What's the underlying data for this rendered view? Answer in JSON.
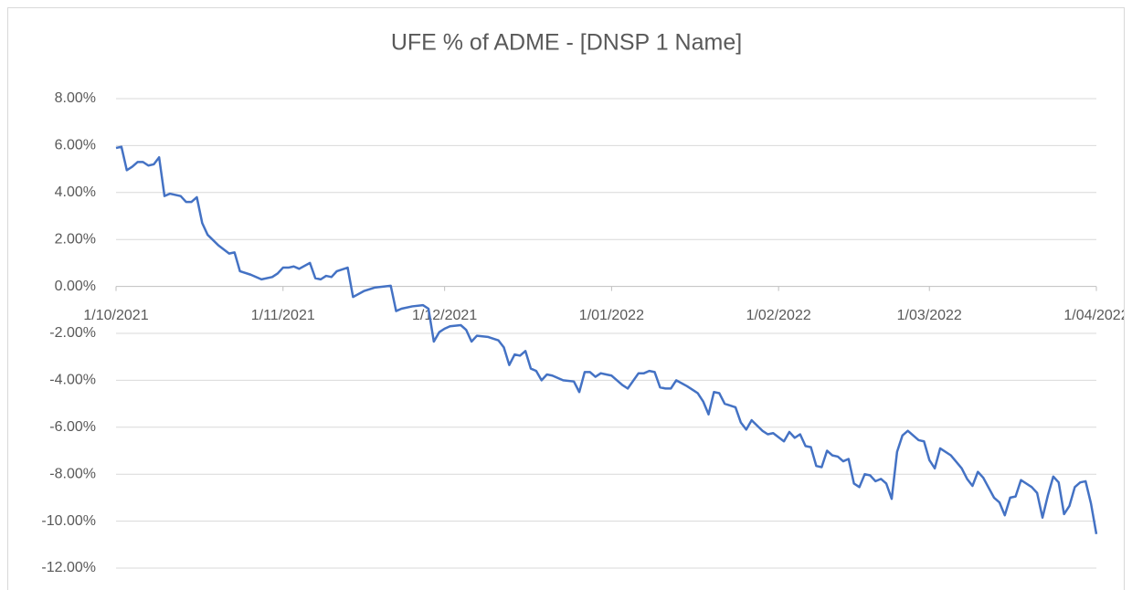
{
  "chart_data": {
    "type": "line",
    "title": "UFE % of ADME - [DNSP 1 Name]",
    "x": [
      "2021-10-01",
      "2021-10-02",
      "2021-10-03",
      "2021-10-04",
      "2021-10-05",
      "2021-10-06",
      "2021-10-07",
      "2021-10-08",
      "2021-10-09",
      "2021-10-10",
      "2021-10-11",
      "2021-10-13",
      "2021-10-14",
      "2021-10-15",
      "2021-10-16",
      "2021-10-17",
      "2021-10-18",
      "2021-10-20",
      "2021-10-22",
      "2021-10-23",
      "2021-10-24",
      "2021-10-26",
      "2021-10-28",
      "2021-10-30",
      "2021-10-31",
      "2021-11-01",
      "2021-11-02",
      "2021-11-03",
      "2021-11-04",
      "2021-11-06",
      "2021-11-07",
      "2021-11-08",
      "2021-11-09",
      "2021-11-10",
      "2021-11-11",
      "2021-11-13",
      "2021-11-14",
      "2021-11-16",
      "2021-11-18",
      "2021-11-21",
      "2021-11-22",
      "2021-11-23",
      "2021-11-25",
      "2021-11-27",
      "2021-11-28",
      "2021-11-29",
      "2021-11-30",
      "2021-12-01",
      "2021-12-02",
      "2021-12-04",
      "2021-12-05",
      "2021-12-06",
      "2021-12-07",
      "2021-12-09",
      "2021-12-11",
      "2021-12-12",
      "2021-12-13",
      "2021-12-14",
      "2021-12-15",
      "2021-12-16",
      "2021-12-17",
      "2021-12-18",
      "2021-12-19",
      "2021-12-20",
      "2021-12-21",
      "2021-12-23",
      "2021-12-25",
      "2021-12-26",
      "2021-12-27",
      "2021-12-28",
      "2021-12-29",
      "2021-12-30",
      "2021-12-31",
      "2022-01-01",
      "2022-01-03",
      "2022-01-04",
      "2022-01-06",
      "2022-01-07",
      "2022-01-08",
      "2022-01-09",
      "2022-01-10",
      "2022-01-11",
      "2022-01-12",
      "2022-01-13",
      "2022-01-15",
      "2022-01-17",
      "2022-01-18",
      "2022-01-19",
      "2022-01-20",
      "2022-01-21",
      "2022-01-22",
      "2022-01-24",
      "2022-01-25",
      "2022-01-26",
      "2022-01-27",
      "2022-01-29",
      "2022-01-30",
      "2022-01-31",
      "2022-02-02",
      "2022-02-03",
      "2022-02-04",
      "2022-02-05",
      "2022-02-06",
      "2022-02-07",
      "2022-02-08",
      "2022-02-09",
      "2022-02-10",
      "2022-02-11",
      "2022-02-12",
      "2022-02-13",
      "2022-02-14",
      "2022-02-15",
      "2022-02-16",
      "2022-02-17",
      "2022-02-18",
      "2022-02-19",
      "2022-02-20",
      "2022-02-21",
      "2022-02-22",
      "2022-02-23",
      "2022-02-24",
      "2022-02-25",
      "2022-02-27",
      "2022-02-28",
      "2022-03-01",
      "2022-03-02",
      "2022-03-03",
      "2022-03-05",
      "2022-03-07",
      "2022-03-08",
      "2022-03-09",
      "2022-03-10",
      "2022-03-11",
      "2022-03-13",
      "2022-03-14",
      "2022-03-15",
      "2022-03-16",
      "2022-03-17",
      "2022-03-18",
      "2022-03-20",
      "2022-03-21",
      "2022-03-22",
      "2022-03-23",
      "2022-03-24",
      "2022-03-25",
      "2022-03-26",
      "2022-03-27",
      "2022-03-28",
      "2022-03-29",
      "2022-03-30",
      "2022-03-31",
      "2022-04-01"
    ],
    "values": [
      5.9,
      5.95,
      4.95,
      5.1,
      5.3,
      5.3,
      5.15,
      5.2,
      5.5,
      3.85,
      3.95,
      3.85,
      3.6,
      3.6,
      3.8,
      2.7,
      2.2,
      1.75,
      1.4,
      1.45,
      0.65,
      0.5,
      0.3,
      0.4,
      0.55,
      0.8,
      0.8,
      0.85,
      0.75,
      1.0,
      0.35,
      0.3,
      0.45,
      0.4,
      0.65,
      0.8,
      -0.45,
      -0.2,
      -0.05,
      0.03,
      -1.05,
      -0.95,
      -0.85,
      -0.8,
      -0.95,
      -2.35,
      -1.95,
      -1.8,
      -1.7,
      -1.65,
      -1.85,
      -2.35,
      -2.1,
      -2.15,
      -2.3,
      -2.6,
      -3.35,
      -2.9,
      -2.95,
      -2.75,
      -3.5,
      -3.6,
      -4.0,
      -3.75,
      -3.8,
      -4.0,
      -4.05,
      -4.5,
      -3.65,
      -3.65,
      -3.85,
      -3.7,
      -3.75,
      -3.8,
      -4.2,
      -4.35,
      -3.7,
      -3.7,
      -3.6,
      -3.65,
      -4.3,
      -4.35,
      -4.35,
      -4.0,
      -4.25,
      -4.55,
      -4.9,
      -5.45,
      -4.5,
      -4.55,
      -5.0,
      -5.15,
      -5.8,
      -6.1,
      -5.7,
      -6.15,
      -6.3,
      -6.25,
      -6.6,
      -6.2,
      -6.45,
      -6.3,
      -6.8,
      -6.85,
      -7.65,
      -7.7,
      -7.0,
      -7.2,
      -7.25,
      -7.45,
      -7.35,
      -8.4,
      -8.55,
      -8.0,
      -8.05,
      -8.3,
      -8.2,
      -8.4,
      -9.05,
      -7.05,
      -6.35,
      -6.15,
      -6.55,
      -6.6,
      -7.4,
      -7.75,
      -6.9,
      -7.2,
      -7.75,
      -8.2,
      -8.5,
      -7.9,
      -8.15,
      -9.0,
      -9.2,
      -9.75,
      -9.0,
      -8.95,
      -8.25,
      -8.55,
      -8.8,
      -9.85,
      -8.9,
      -8.1,
      -8.35,
      -9.7,
      -9.35,
      -8.55,
      -8.35,
      -8.3,
      -9.25,
      -10.55
    ],
    "color": "#4472c4",
    "xlim": [
      "2021-10-01",
      "2022-04-01"
    ],
    "xticks": [
      {
        "value": "2021-10-01",
        "label": "1/10/2021"
      },
      {
        "value": "2021-11-01",
        "label": "1/11/2021"
      },
      {
        "value": "2021-12-01",
        "label": "1/12/2021"
      },
      {
        "value": "2022-01-01",
        "label": "1/01/2022"
      },
      {
        "value": "2022-02-01",
        "label": "1/02/2022"
      },
      {
        "value": "2022-03-01",
        "label": "1/03/2022"
      },
      {
        "value": "2022-04-01",
        "label": "1/04/2022"
      }
    ],
    "ylim": [
      -12,
      8
    ],
    "yticks": [
      {
        "value": 8,
        "label": "8.00%"
      },
      {
        "value": 6,
        "label": "6.00%"
      },
      {
        "value": 4,
        "label": "4.00%"
      },
      {
        "value": 2,
        "label": "2.00%"
      },
      {
        "value": 0,
        "label": "0.00%"
      },
      {
        "value": -2,
        "label": "-2.00%"
      },
      {
        "value": -4,
        "label": "-4.00%"
      },
      {
        "value": -6,
        "label": "-6.00%"
      },
      {
        "value": -8,
        "label": "-8.00%"
      },
      {
        "value": -10,
        "label": "-10.00%"
      },
      {
        "value": -12,
        "label": "-12.00%"
      }
    ],
    "grid": true
  }
}
